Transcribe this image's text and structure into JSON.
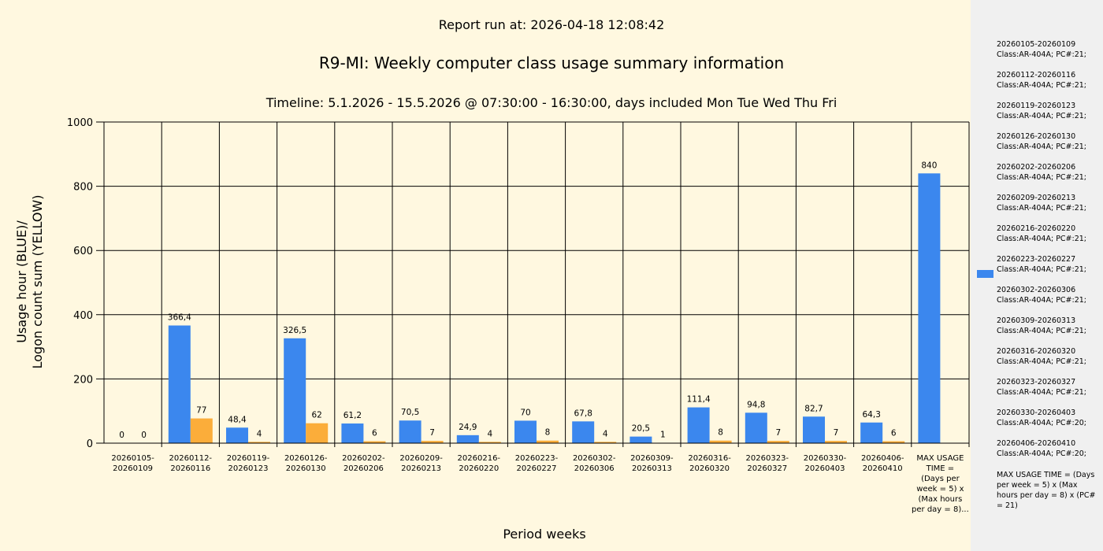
{
  "header": {
    "report_run": "Report run at: 2026-04-18 12:08:42",
    "title": "R9-MI: Weekly computer class usage summary information",
    "subtitle": "Timeline:  5.1.2026  - 15.5.2026  @  07:30:00 -  16:30:00, days included Mon Tue Wed Thu Fri"
  },
  "colors": {
    "usage": "#3b87ee",
    "logon": "#fbad3a",
    "background": "#fff8e0",
    "legend_bg": "#f0f0f0"
  },
  "chart_data": {
    "type": "bar",
    "xlabel": "Period weeks",
    "ylabel_line1": "Usage hour (BLUE)/",
    "ylabel_line2": "Logon count sum (YELLOW)",
    "ylim": [
      0,
      1000
    ],
    "yticks": [
      0,
      200,
      400,
      600,
      800,
      1000
    ],
    "grid": true,
    "categories": [
      [
        "20260105-",
        "20260109"
      ],
      [
        "20260112-",
        "20260116"
      ],
      [
        "20260119-",
        "20260123"
      ],
      [
        "20260126-",
        "20260130"
      ],
      [
        "20260202-",
        "20260206"
      ],
      [
        "20260209-",
        "20260213"
      ],
      [
        "20260216-",
        "20260220"
      ],
      [
        "20260223-",
        "20260227"
      ],
      [
        "20260302-",
        "20260306"
      ],
      [
        "20260309-",
        "20260313"
      ],
      [
        "20260316-",
        "20260320"
      ],
      [
        "20260323-",
        "20260327"
      ],
      [
        "20260330-",
        "20260403"
      ],
      [
        "20260406-",
        "20260410"
      ],
      [
        "MAX USAGE",
        "TIME =",
        "(Days per",
        "week = 5) x",
        "(Max hours",
        "per day = 8)..."
      ]
    ],
    "series": [
      {
        "values": [
          0,
          366.4,
          48.4,
          326.5,
          61.2,
          70.5,
          24.9,
          70,
          67.8,
          20.5,
          111.4,
          94.8,
          82.7,
          64.3,
          840
        ],
        "labels": [
          "0",
          "366,4",
          "48,4",
          "326,5",
          "61,2",
          "70,5",
          "24,9",
          "70",
          "67,8",
          "20,5",
          "111,4",
          "94,8",
          "82,7",
          "64,3",
          "840"
        ]
      },
      {
        "values": [
          0,
          77,
          4,
          62,
          6,
          7,
          4,
          8,
          4,
          1,
          8,
          7,
          7,
          6,
          null
        ],
        "labels": [
          "0",
          "77",
          "4",
          "62",
          "6",
          "7",
          "4",
          "8",
          "4",
          "1",
          "8",
          "7",
          "7",
          "6",
          null
        ]
      }
    ]
  },
  "legend": {
    "items": [
      [
        "20260105-20260109",
        "Class:AR-404A; PC#:21;"
      ],
      [
        "20260112-20260116",
        "Class:AR-404A; PC#:21;"
      ],
      [
        "20260119-20260123",
        "Class:AR-404A; PC#:21;"
      ],
      [
        "20260126-20260130",
        "Class:AR-404A; PC#:21;"
      ],
      [
        "20260202-20260206",
        "Class:AR-404A; PC#:21;"
      ],
      [
        "20260209-20260213",
        "Class:AR-404A; PC#:21;"
      ],
      [
        "20260216-20260220",
        "Class:AR-404A; PC#:21;"
      ],
      [
        "20260223-20260227",
        "Class:AR-404A; PC#:21;"
      ],
      [
        "20260302-20260306",
        "Class:AR-404A; PC#:21;"
      ],
      [
        "20260309-20260313",
        "Class:AR-404A; PC#:21;"
      ],
      [
        "20260316-20260320",
        "Class:AR-404A; PC#:21;"
      ],
      [
        "20260323-20260327",
        "Class:AR-404A; PC#:21;"
      ],
      [
        "20260330-20260403",
        "Class:AR-404A; PC#:20;"
      ],
      [
        "20260406-20260410",
        "Class:AR-404A; PC#:20;"
      ]
    ],
    "max_note": "MAX USAGE TIME = (Days per week = 5) x (Max hours per day = 8) x (PC# = 21)"
  }
}
